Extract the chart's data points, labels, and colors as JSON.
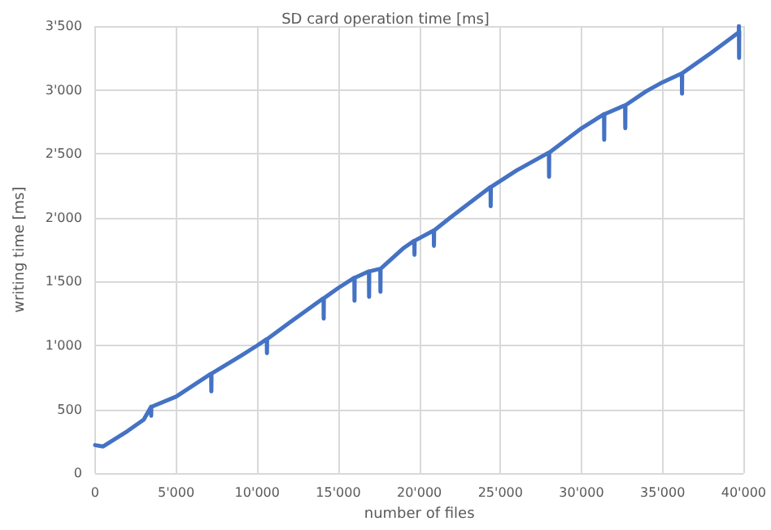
{
  "chart_data": {
    "type": "line",
    "title": "SD card operation time [ms]",
    "xlabel": "number of files",
    "ylabel": "writing time [ms]",
    "xlim": [
      0,
      40000
    ],
    "ylim": [
      0,
      3500
    ],
    "xticks": [
      0,
      {
        "value": 5000,
        "label": "5'000"
      },
      {
        "value": 10000,
        "label": "10'000"
      },
      {
        "value": 15000,
        "label": "15'000"
      },
      {
        "value": 20000,
        "label": "20'000"
      },
      {
        "value": 25000,
        "label": "25'000"
      },
      {
        "value": 30000,
        "label": "30'000"
      },
      {
        "value": 35000,
        "label": "35'000"
      },
      {
        "value": 40000,
        "label": "40'000"
      }
    ],
    "yticks": [
      0,
      500,
      {
        "value": 1000,
        "label": "1'000"
      },
      {
        "value": 1500,
        "label": "1'500"
      },
      {
        "value": 2000,
        "label": "2'000"
      },
      {
        "value": 2500,
        "label": "2'500"
      },
      {
        "value": 3000,
        "label": "3'000"
      },
      {
        "value": 3500,
        "label": "3'500"
      }
    ],
    "grid": true,
    "marker": "none",
    "line_style": "solid",
    "series": [
      {
        "color": "#4472c4",
        "x": [
          0,
          500,
          1000,
          2000,
          3000,
          3450,
          3460,
          3470,
          5000,
          7160,
          7170,
          7180,
          9000,
          10000,
          10590,
          10600,
          10610,
          12000,
          14090,
          14100,
          14110,
          15000,
          15990,
          16000,
          16010,
          16890,
          16900,
          16910,
          17590,
          17600,
          17610,
          19000,
          19690,
          19700,
          19710,
          20890,
          20900,
          20910,
          22000,
          24390,
          24400,
          24410,
          26000,
          27990,
          28000,
          28010,
          30000,
          31390,
          31400,
          31410,
          32690,
          32700,
          32710,
          34000,
          35000,
          36190,
          36200,
          36210,
          38000,
          39700,
          39710,
          39720,
          39730
        ],
        "values": [
          220,
          210,
          250,
          330,
          420,
          520,
          450,
          520,
          600,
          780,
          640,
          780,
          920,
          1000,
          1050,
          940,
          1050,
          1180,
          1370,
          1210,
          1370,
          1450,
          1530,
          1350,
          1530,
          1580,
          1380,
          1580,
          1600,
          1420,
          1600,
          1760,
          1820,
          1710,
          1820,
          1900,
          1780,
          1900,
          2010,
          2240,
          2090,
          2240,
          2370,
          2510,
          2320,
          2510,
          2700,
          2810,
          2610,
          2810,
          2880,
          2700,
          2880,
          2990,
          3060,
          3130,
          2970,
          3130,
          3290,
          3450,
          3500,
          3250,
          3460
        ]
      }
    ]
  }
}
